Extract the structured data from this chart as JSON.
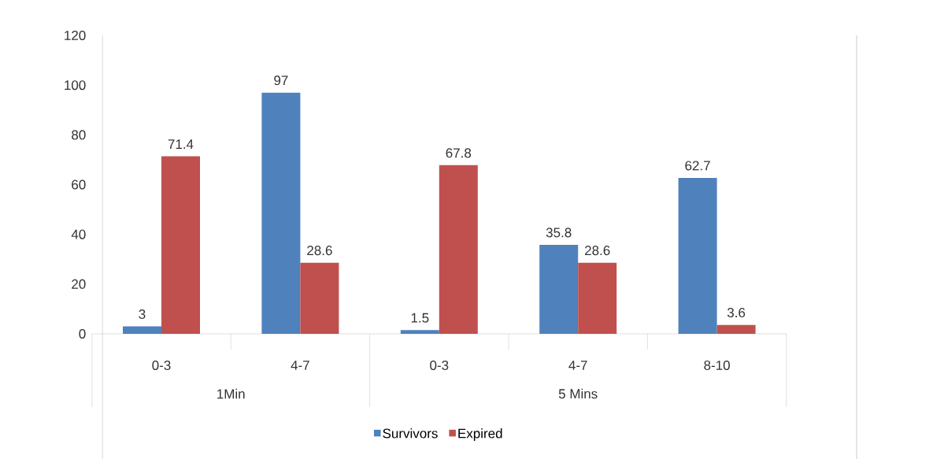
{
  "chart_data": {
    "type": "bar",
    "categories": [
      "0-3",
      "4-7",
      "0-3",
      "4-7",
      "8-10"
    ],
    "series": [
      {
        "name": "Survivors",
        "color": "#4f81bd",
        "values": [
          3,
          97,
          1.5,
          35.8,
          62.7
        ]
      },
      {
        "name": "Expired",
        "color": "#c0504d",
        "values": [
          71.4,
          28.6,
          67.8,
          28.6,
          3.6
        ]
      }
    ],
    "annotations": [
      "1Min",
      "5 Mins"
    ],
    "ylim": [
      0,
      120
    ],
    "yticks": [
      0,
      20,
      40,
      60,
      80,
      100,
      120
    ],
    "data_labels": true,
    "legend": "bottom"
  }
}
